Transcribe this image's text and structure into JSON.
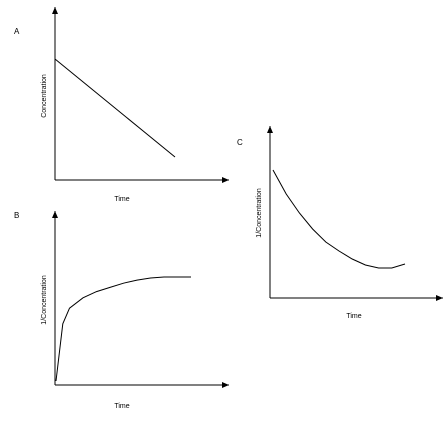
{
  "chart_data": [
    {
      "panel_label": "A",
      "type": "line",
      "xlabel": "Time",
      "ylabel": "Concentration",
      "shape": "straight line decreasing",
      "x": [
        0,
        1
      ],
      "y": [
        1,
        0
      ]
    },
    {
      "panel_label": "B",
      "type": "line",
      "xlabel": "Time",
      "ylabel": "1/Concentration",
      "shape": "rising curve leveling off",
      "x": [
        0,
        0.05,
        0.1,
        0.2,
        0.3,
        0.4,
        0.5,
        0.6,
        0.7,
        0.8,
        0.9,
        1.0
      ],
      "y": [
        0,
        0.55,
        0.7,
        0.8,
        0.86,
        0.9,
        0.94,
        0.97,
        0.99,
        1.0,
        1.0,
        1.0
      ]
    },
    {
      "panel_label": "C",
      "type": "line",
      "xlabel": "Time",
      "ylabel": "1/Concentration",
      "shape": "decreasing curve flattening",
      "x": [
        0,
        0.05,
        0.1,
        0.2,
        0.3,
        0.4,
        0.5,
        0.6,
        0.7,
        0.8,
        0.9,
        1.0
      ],
      "y": [
        1.0,
        0.88,
        0.76,
        0.57,
        0.41,
        0.28,
        0.19,
        0.11,
        0.05,
        0.02,
        0.02,
        0.06
      ]
    }
  ]
}
